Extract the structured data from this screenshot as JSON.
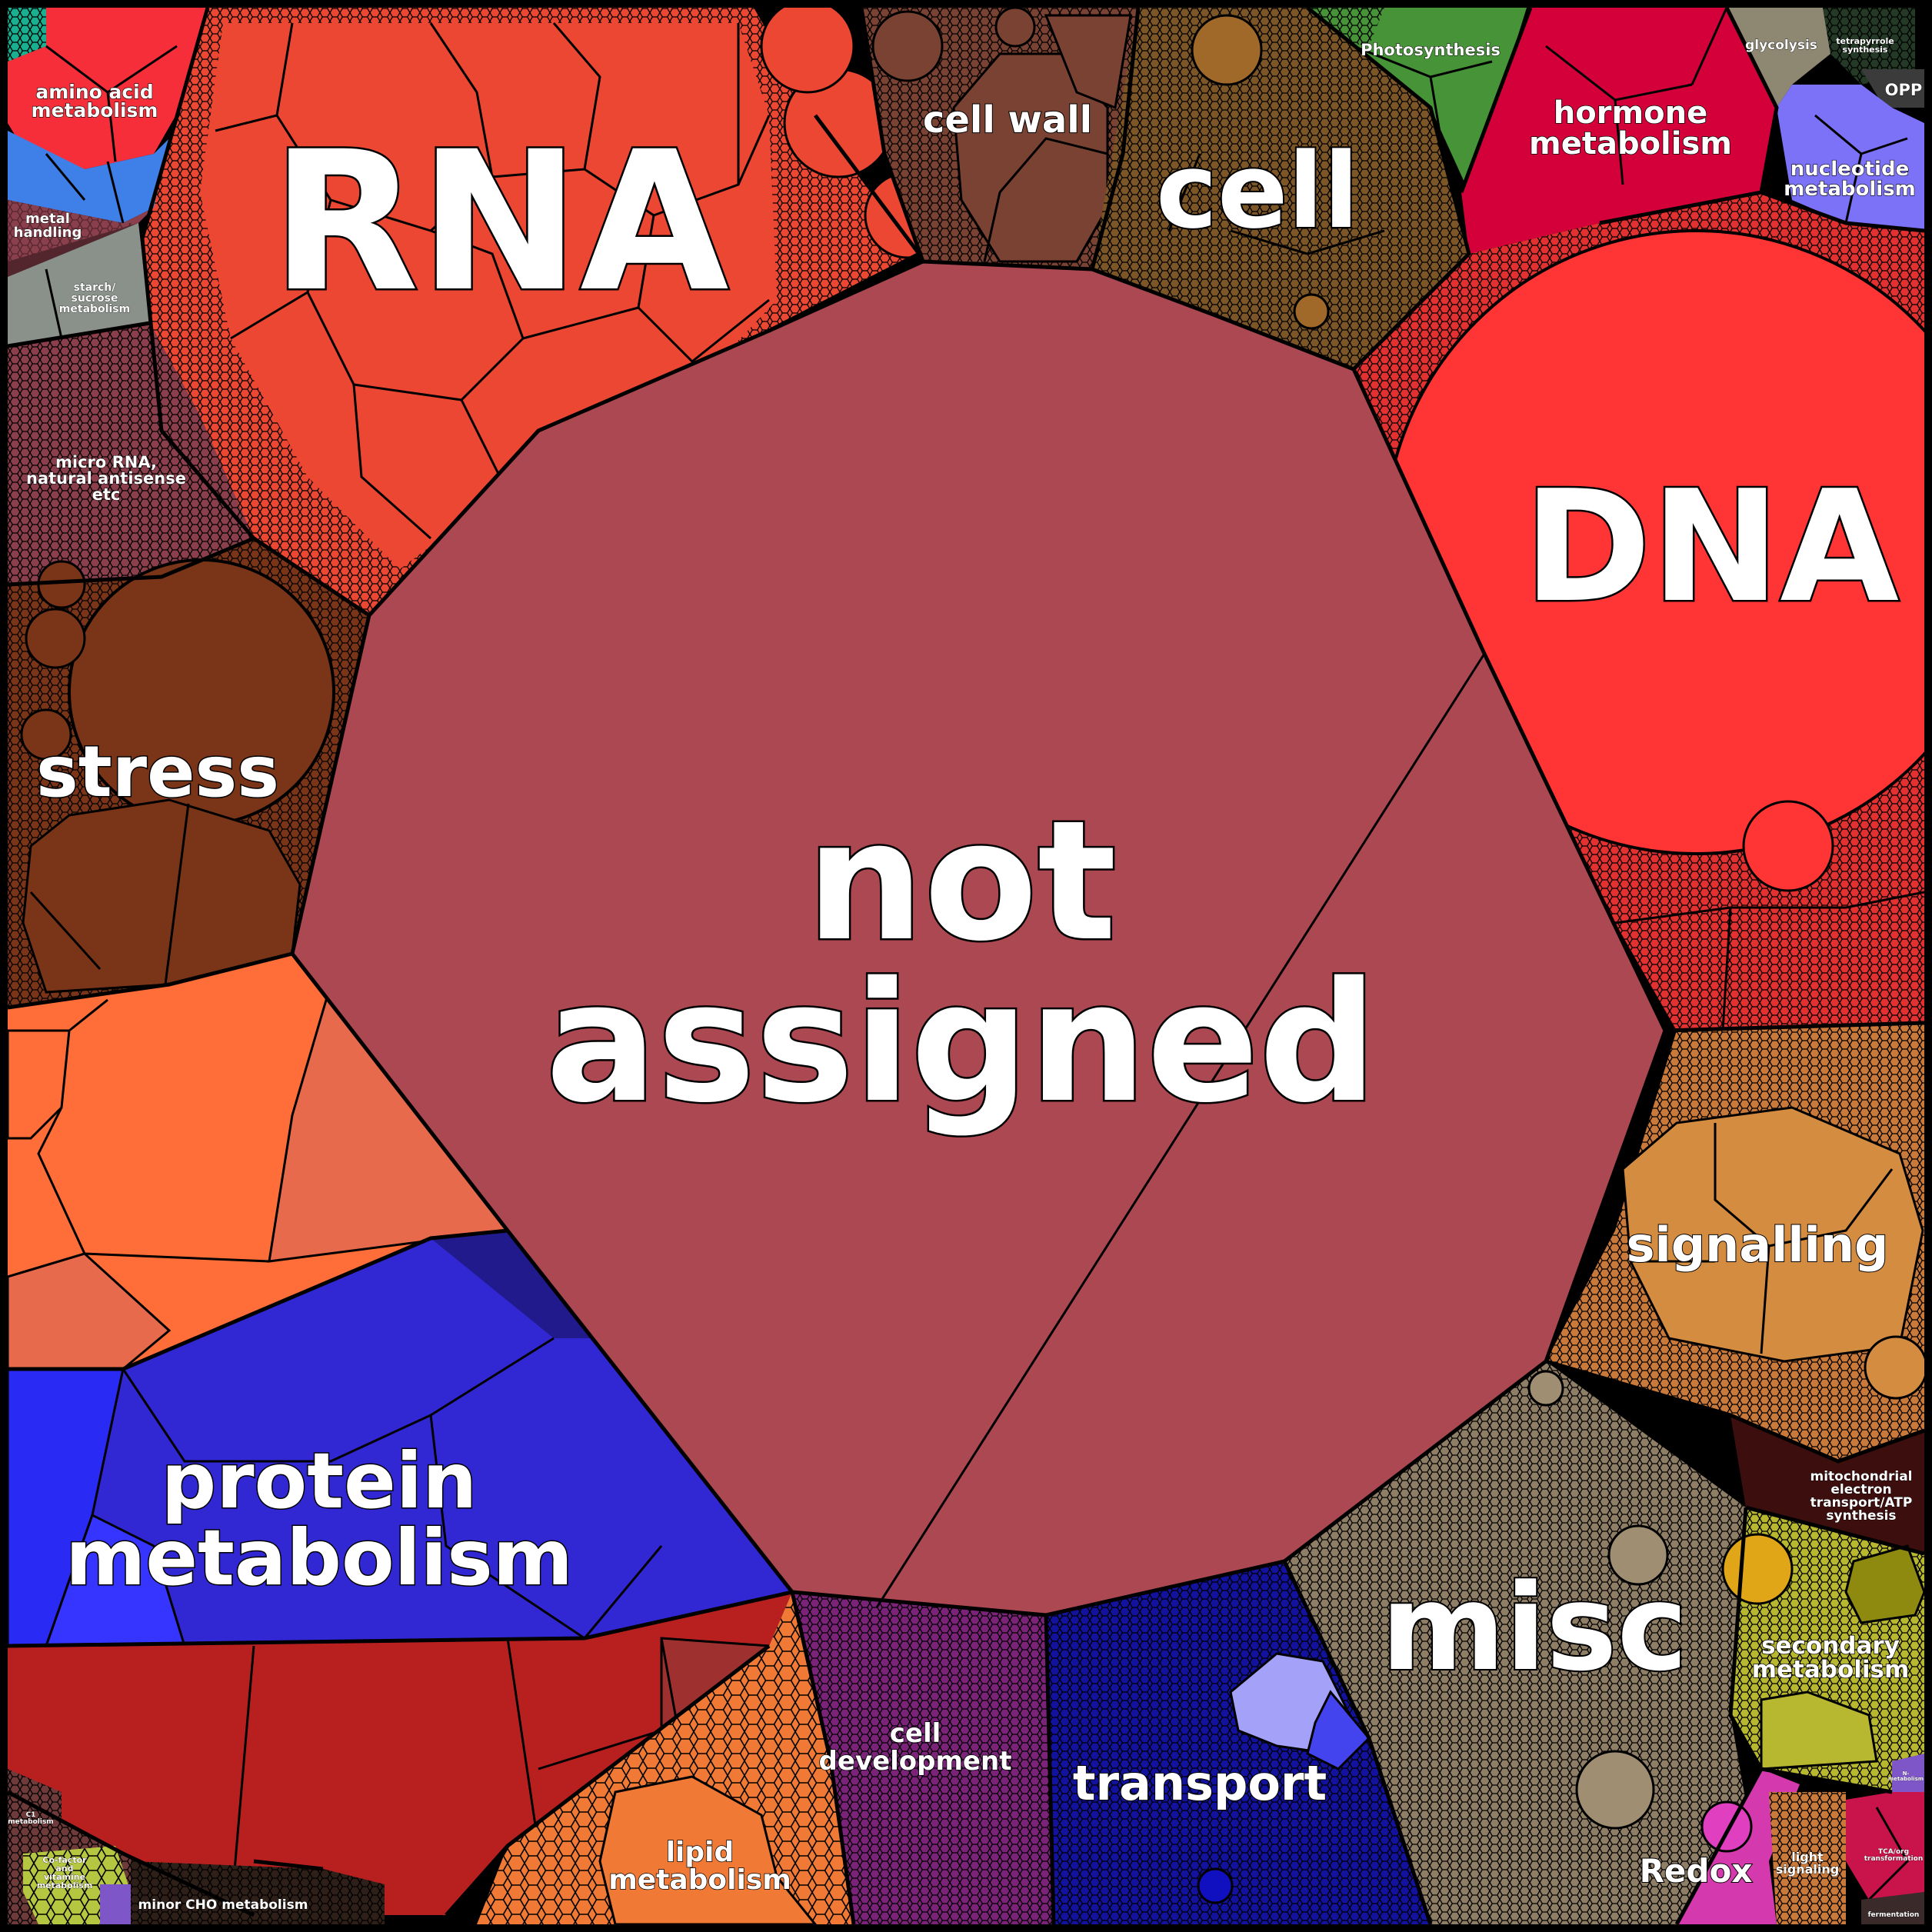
{
  "diagram": {
    "type": "voronoi-treemap",
    "background": "#000000",
    "cell_border": "#000000",
    "fine_pattern": "hexagonal cells",
    "categories": [
      {
        "id": "not-assigned",
        "label": "not assigned",
        "color": "#AC4852"
      },
      {
        "id": "rna",
        "label": "RNA",
        "color": "#EC4733"
      },
      {
        "id": "dna",
        "label": "DNA",
        "color": "#FF3535"
      },
      {
        "id": "cell",
        "label": "cell",
        "color": "#7C5626"
      },
      {
        "id": "cell-wall",
        "label": "cell wall",
        "color": "#7A4232"
      },
      {
        "id": "protein-metabolism",
        "label": "protein metabolism",
        "color": "#3128D4"
      },
      {
        "id": "stress",
        "label": "stress",
        "color": "#7A3518"
      },
      {
        "id": "signalling",
        "label": "signalling",
        "color": "#D48C40"
      },
      {
        "id": "misc",
        "label": "misc",
        "color": "#8F7E66"
      },
      {
        "id": "transport",
        "label": "transport",
        "color": "#12129E"
      },
      {
        "id": "cell-development",
        "label": "cell development",
        "color": "#7A2378"
      },
      {
        "id": "lipid-metabolism",
        "label": "lipid metabolism",
        "color": "#F07A35"
      },
      {
        "id": "secondary-metabolism",
        "label": "secondary metabolism",
        "color": "#B8B830"
      },
      {
        "id": "redox",
        "label": "Redox",
        "color": "#D43AAE"
      },
      {
        "id": "hormone-metabolism",
        "label": "hormone metabolism",
        "color": "#D4003A"
      },
      {
        "id": "nucleotide-metabolism",
        "label": "nucleotide metabolism",
        "color": "#7B72F8"
      },
      {
        "id": "amino-acid-metabolism",
        "label": "amino acid metabolism",
        "color": "#F52E3A"
      },
      {
        "id": "photosynthesis",
        "label": "Photosynthesis",
        "color": "#479338"
      },
      {
        "id": "glycolysis",
        "label": "glycolysis",
        "color": "#8E8772"
      },
      {
        "id": "tetrapyrrole-synthesis",
        "label": "tetrapyrrole synthesis",
        "color": "#243A26"
      },
      {
        "id": "opp",
        "label": "OPP",
        "color": "#3B3B3B"
      },
      {
        "id": "metal-handling",
        "label": "metal handling",
        "color": "#8B3F4C"
      },
      {
        "id": "starch-sucrose-metabolism",
        "label": "starch/ sucrose metabolism",
        "color": "#8A908A"
      },
      {
        "id": "micro-rna",
        "label": "micro RNA, natural antisense etc",
        "color": "#8B3F4C"
      },
      {
        "id": "mitochondrial-etc",
        "label": "mitochondrial electron transport/ATP synthesis",
        "color": "#3D0E0E"
      },
      {
        "id": "light-signaling",
        "label": "light signaling",
        "color": "#C97A3A"
      },
      {
        "id": "tca",
        "label": "TCA/org transformation",
        "color": "#C8144A"
      },
      {
        "id": "fermentation",
        "label": "fermentation",
        "color": "#3B2A2A"
      },
      {
        "id": "minor-cho",
        "label": "minor CHO metabolism",
        "color": "#2E2018"
      },
      {
        "id": "cofactor",
        "label": "Co-factor and vitamine metabolism",
        "color": "#B5C640"
      },
      {
        "id": "c1",
        "label": "C1 metabolism",
        "color": "#6E3A3A"
      },
      {
        "id": "n-metabolism",
        "label": "N-metabolism",
        "color": "#7E56C8"
      },
      {
        "id": "protein-lower",
        "label": "",
        "color": "#B82020"
      }
    ]
  }
}
